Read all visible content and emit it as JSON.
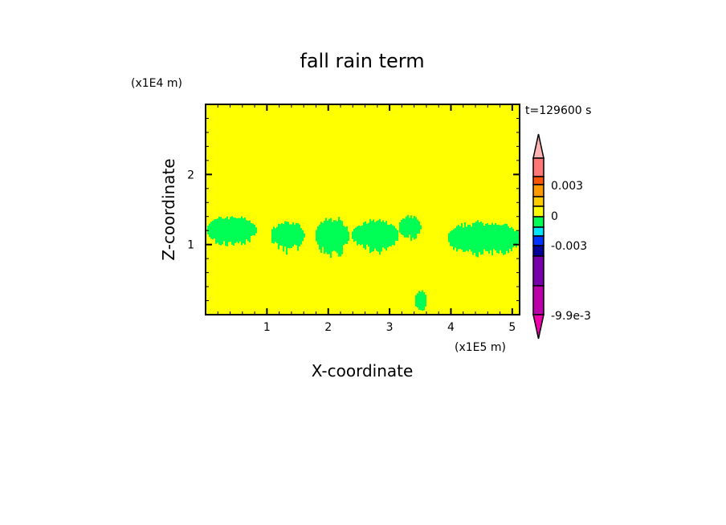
{
  "chart_data": {
    "type": "heatmap",
    "title": "fall rain term",
    "xlabel": "X-coordinate",
    "ylabel": "Z-coordinate",
    "x_unit": "(x1E5 m)",
    "y_unit": "(x1E4 m)",
    "time_label": "t=129600 s",
    "xlim": [
      0,
      5.12
    ],
    "ylim": [
      0,
      3.0
    ],
    "x_ticks": [
      "1",
      "2",
      "3",
      "4",
      "5"
    ],
    "x_tick_values": [
      1,
      2,
      3,
      4,
      5
    ],
    "y_ticks": [
      "1",
      "2"
    ],
    "y_tick_values": [
      1,
      2
    ],
    "background_value_color": "#ffff00",
    "colorbar": {
      "levels_colors": [
        "#ff7777",
        "#ff5500",
        "#ff9900",
        "#ffcc00",
        "#ffff00",
        "#00ff55",
        "#00e5ff",
        "#0033ff",
        "#000099",
        "#7700aa",
        "#bb00aa"
      ],
      "over_color": "#ffb3b3",
      "under_color": "#ee00aa",
      "tick_labels": [
        "0.003",
        "0",
        "-0.003",
        "-9.9e-3"
      ],
      "tick_values": [
        0.003,
        0,
        -0.003,
        -0.0099
      ]
    },
    "regions": [
      {
        "color": "#00ff55",
        "x": [
          0.0,
          0.82
        ],
        "z": [
          1.0,
          1.42
        ]
      },
      {
        "color": "#00ff55",
        "x": [
          1.05,
          1.6
        ],
        "z": [
          0.92,
          1.34
        ]
      },
      {
        "color": "#00ff55",
        "x": [
          1.78,
          2.33
        ],
        "z": [
          0.85,
          1.4
        ]
      },
      {
        "color": "#00ff55",
        "x": [
          2.37,
          3.14
        ],
        "z": [
          0.92,
          1.36
        ]
      },
      {
        "color": "#00ff55",
        "x": [
          3.14,
          3.5
        ],
        "z": [
          1.08,
          1.42
        ]
      },
      {
        "color": "#00ff55",
        "x": [
          3.93,
          5.12
        ],
        "z": [
          0.85,
          1.34
        ]
      },
      {
        "color": "#00ff55",
        "x": [
          3.4,
          3.6
        ],
        "z": [
          0.05,
          0.35
        ]
      }
    ]
  }
}
